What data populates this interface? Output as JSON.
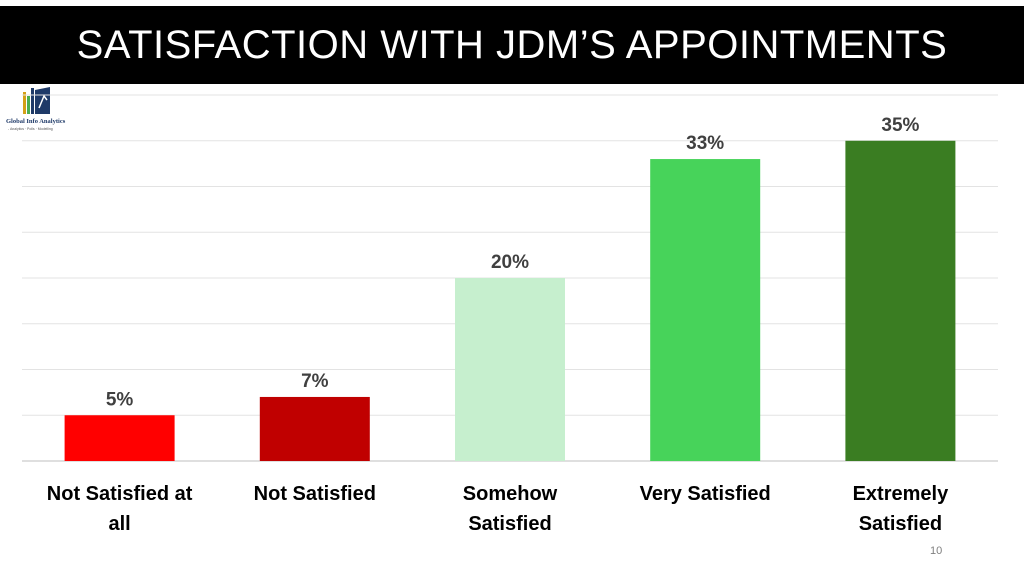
{
  "title": "SATISFACTION WITH JDM’S APPOINTMENTS",
  "logo": {
    "name": "Global Info Analytics",
    "tagline": "- Analytics · Polls · Modelling"
  },
  "page_number": "10",
  "chart_data": {
    "type": "bar",
    "categories": [
      [
        "Not Satisfied at",
        "all"
      ],
      [
        "Not Satisfied"
      ],
      [
        "Somehow",
        "Satisfied"
      ],
      [
        "Very Satisfied"
      ],
      [
        "Extremely",
        "Satisfied"
      ]
    ],
    "values": [
      5,
      7,
      20,
      33,
      35
    ],
    "data_labels": [
      "5%",
      "7%",
      "20%",
      "33%",
      "35%"
    ],
    "colors": [
      "#ff0000",
      "#c00000",
      "#c6efce",
      "#47d35a",
      "#3a7d22"
    ],
    "ylim": [
      0,
      40
    ],
    "grid": true,
    "legend": false
  }
}
